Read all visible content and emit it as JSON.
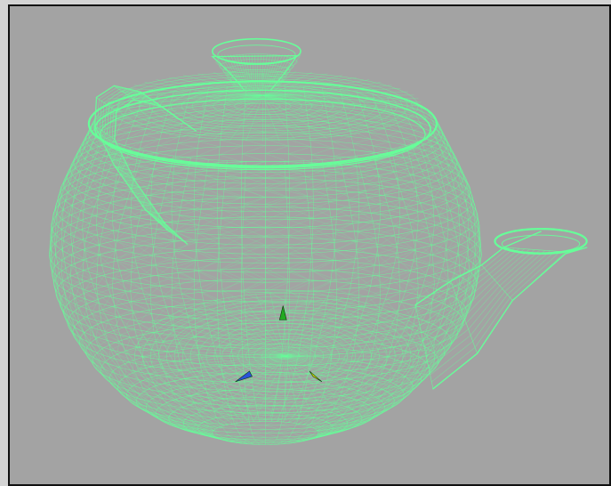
{
  "viewport": {
    "background_color": "#a3a3a3",
    "border_color": "#111111",
    "outer_background": "#d4d4d4",
    "display_mode": "wireframe"
  },
  "model": {
    "name": "teapot",
    "wire_color": "#66ff99",
    "parts": [
      "body",
      "lid",
      "knob",
      "handle",
      "spout"
    ]
  },
  "gizmo": {
    "markers": [
      {
        "name": "green-arrow",
        "color": "#22aa22"
      },
      {
        "name": "blue-arrow",
        "color": "#2a52d8"
      },
      {
        "name": "yellow-arrow",
        "color": "#e0e000"
      }
    ]
  }
}
